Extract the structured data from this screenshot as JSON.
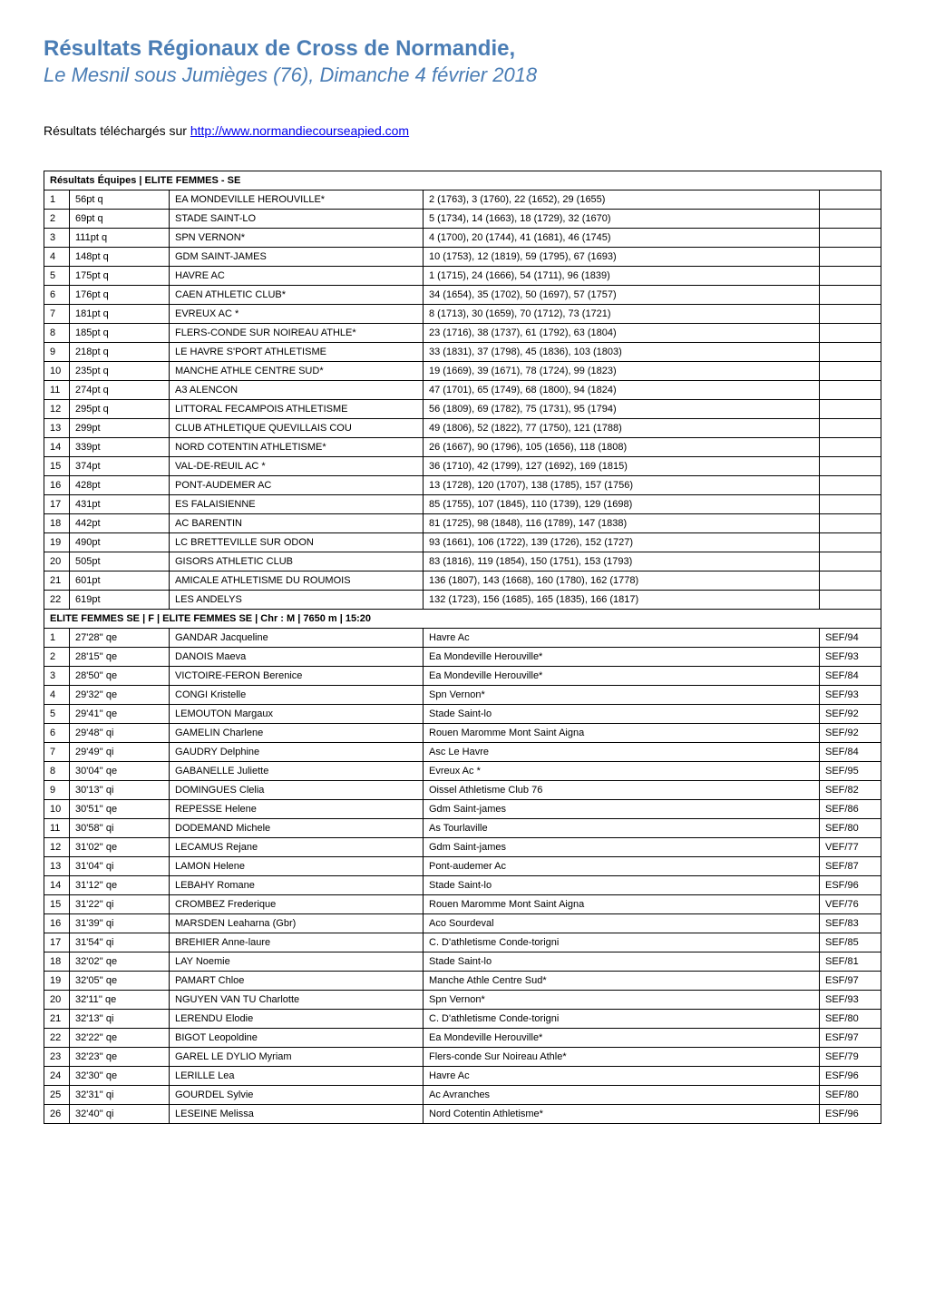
{
  "colors": {
    "title": "#4a7db5",
    "link": "#0000ee",
    "text": "#000000",
    "border": "#000000",
    "background": "#ffffff"
  },
  "header": {
    "title": "Résultats Régionaux de Cross de Normandie,",
    "subtitle": "Le Mesnil sous Jumièges (76), Dimanche 4 février 2018",
    "download_prefix": "Résultats téléchargés sur ",
    "download_link_text": "http://www.normandiecourseapied.com"
  },
  "team_section": {
    "heading": "Résultats Équipes | ELITE FEMMES - SE",
    "rows": [
      {
        "rank": "1",
        "points": "56pt q",
        "club": "EA MONDEVILLE HEROUVILLE*",
        "detail": "2 (1763), 3 (1760), 22 (1652), 29 (1655)"
      },
      {
        "rank": "2",
        "points": "69pt q",
        "club": "STADE SAINT-LO",
        "detail": "5 (1734), 14 (1663), 18 (1729), 32 (1670)"
      },
      {
        "rank": "3",
        "points": "111pt q",
        "club": "SPN VERNON*",
        "detail": "4 (1700), 20 (1744), 41 (1681), 46 (1745)"
      },
      {
        "rank": "4",
        "points": "148pt q",
        "club": "GDM SAINT-JAMES",
        "detail": "10 (1753), 12 (1819), 59 (1795), 67 (1693)"
      },
      {
        "rank": "5",
        "points": "175pt q",
        "club": "HAVRE AC",
        "detail": "1 (1715), 24 (1666), 54 (1711), 96 (1839)"
      },
      {
        "rank": "6",
        "points": "176pt q",
        "club": "CAEN ATHLETIC CLUB*",
        "detail": "34 (1654), 35 (1702), 50 (1697), 57 (1757)"
      },
      {
        "rank": "7",
        "points": "181pt q",
        "club": "EVREUX AC *",
        "detail": "8 (1713), 30 (1659), 70 (1712), 73 (1721)"
      },
      {
        "rank": "8",
        "points": "185pt q",
        "club": "FLERS-CONDE SUR NOIREAU ATHLE*",
        "detail": "23 (1716), 38 (1737), 61 (1792), 63 (1804)"
      },
      {
        "rank": "9",
        "points": "218pt q",
        "club": "LE HAVRE S'PORT ATHLETISME",
        "detail": "33 (1831), 37 (1798), 45 (1836), 103 (1803)"
      },
      {
        "rank": "10",
        "points": "235pt q",
        "club": "MANCHE ATHLE CENTRE SUD*",
        "detail": "19 (1669), 39 (1671), 78 (1724), 99 (1823)"
      },
      {
        "rank": "11",
        "points": "274pt q",
        "club": "A3 ALENCON",
        "detail": "47 (1701), 65 (1749), 68 (1800), 94 (1824)"
      },
      {
        "rank": "12",
        "points": "295pt q",
        "club": "LITTORAL FECAMPOIS ATHLETISME",
        "detail": "56 (1809), 69 (1782), 75 (1731), 95 (1794)"
      },
      {
        "rank": "13",
        "points": "299pt",
        "club": "CLUB ATHLETIQUE QUEVILLAIS COU",
        "detail": "49 (1806), 52 (1822), 77 (1750), 121 (1788)"
      },
      {
        "rank": "14",
        "points": "339pt",
        "club": "NORD COTENTIN ATHLETISME*",
        "detail": "26 (1667), 90 (1796), 105 (1656), 118 (1808)"
      },
      {
        "rank": "15",
        "points": "374pt",
        "club": "VAL-DE-REUIL AC *",
        "detail": "36 (1710), 42 (1799), 127 (1692), 169 (1815)"
      },
      {
        "rank": "16",
        "points": "428pt",
        "club": "PONT-AUDEMER AC",
        "detail": "13 (1728), 120 (1707), 138 (1785), 157 (1756)"
      },
      {
        "rank": "17",
        "points": "431pt",
        "club": "ES FALAISIENNE",
        "detail": "85 (1755), 107 (1845), 110 (1739), 129 (1698)"
      },
      {
        "rank": "18",
        "points": "442pt",
        "club": "AC BARENTIN",
        "detail": "81 (1725), 98 (1848), 116 (1789), 147 (1838)"
      },
      {
        "rank": "19",
        "points": "490pt",
        "club": "LC BRETTEVILLE SUR ODON",
        "detail": "93 (1661), 106 (1722), 139 (1726), 152 (1727)"
      },
      {
        "rank": "20",
        "points": "505pt",
        "club": "GISORS ATHLETIC CLUB",
        "detail": "83 (1816), 119 (1854), 150 (1751), 153 (1793)"
      },
      {
        "rank": "21",
        "points": "601pt",
        "club": "AMICALE ATHLETISME DU ROUMOIS",
        "detail": "136 (1807), 143 (1668), 160 (1780), 162 (1778)"
      },
      {
        "rank": "22",
        "points": "619pt",
        "club": "LES ANDELYS",
        "detail": "132 (1723), 156 (1685), 165 (1835), 166 (1817)"
      }
    ]
  },
  "indiv_section": {
    "heading": "ELITE FEMMES SE | F | ELITE FEMMES SE | Chr : M | 7650 m | 15:20",
    "rows": [
      {
        "rank": "1",
        "time": "27'28'' qe",
        "name": "GANDAR Jacqueline",
        "club": "Havre Ac",
        "cat": "SEF/94"
      },
      {
        "rank": "2",
        "time": "28'15'' qe",
        "name": "DANOIS Maeva",
        "club": "Ea Mondeville Herouville*",
        "cat": "SEF/93"
      },
      {
        "rank": "3",
        "time": "28'50'' qe",
        "name": "VICTOIRE-FERON Berenice",
        "club": "Ea Mondeville Herouville*",
        "cat": "SEF/84"
      },
      {
        "rank": "4",
        "time": "29'32'' qe",
        "name": "CONGI Kristelle",
        "club": "Spn Vernon*",
        "cat": "SEF/93"
      },
      {
        "rank": "5",
        "time": "29'41'' qe",
        "name": "LEMOUTON Margaux",
        "club": "Stade Saint-lo",
        "cat": "SEF/92"
      },
      {
        "rank": "6",
        "time": "29'48'' qi",
        "name": "GAMELIN Charlene",
        "club": "Rouen Maromme Mont Saint Aigna",
        "cat": "SEF/92"
      },
      {
        "rank": "7",
        "time": "29'49'' qi",
        "name": "GAUDRY Delphine",
        "club": "Asc Le Havre",
        "cat": "SEF/84"
      },
      {
        "rank": "8",
        "time": "30'04'' qe",
        "name": "GABANELLE Juliette",
        "club": "Evreux Ac *",
        "cat": "SEF/95"
      },
      {
        "rank": "9",
        "time": "30'13'' qi",
        "name": "DOMINGUES Clelia",
        "club": "Oissel Athletisme Club 76",
        "cat": "SEF/82"
      },
      {
        "rank": "10",
        "time": "30'51'' qe",
        "name": "REPESSE Helene",
        "club": "Gdm Saint-james",
        "cat": "SEF/86"
      },
      {
        "rank": "11",
        "time": "30'58'' qi",
        "name": "DODEMAND Michele",
        "club": "As Tourlaville",
        "cat": "SEF/80"
      },
      {
        "rank": "12",
        "time": "31'02'' qe",
        "name": "LECAMUS Rejane",
        "club": "Gdm Saint-james",
        "cat": "VEF/77"
      },
      {
        "rank": "13",
        "time": "31'04'' qi",
        "name": "LAMON Helene",
        "club": "Pont-audemer Ac",
        "cat": "SEF/87"
      },
      {
        "rank": "14",
        "time": "31'12'' qe",
        "name": "LEBAHY Romane",
        "club": "Stade Saint-lo",
        "cat": "ESF/96"
      },
      {
        "rank": "15",
        "time": "31'22'' qi",
        "name": "CROMBEZ Frederique",
        "club": "Rouen Maromme Mont Saint Aigna",
        "cat": "VEF/76"
      },
      {
        "rank": "16",
        "time": "31'39'' qi",
        "name": "MARSDEN Leaharna (Gbr)",
        "club": "Aco Sourdeval",
        "cat": "SEF/83"
      },
      {
        "rank": "17",
        "time": "31'54'' qi",
        "name": "BREHIER Anne-laure",
        "club": "C. D'athletisme Conde-torigni",
        "cat": "SEF/85"
      },
      {
        "rank": "18",
        "time": "32'02'' qe",
        "name": "LAY Noemie",
        "club": "Stade Saint-lo",
        "cat": "SEF/81"
      },
      {
        "rank": "19",
        "time": "32'05'' qe",
        "name": "PAMART Chloe",
        "club": "Manche Athle Centre Sud*",
        "cat": "ESF/97"
      },
      {
        "rank": "20",
        "time": "32'11'' qe",
        "name": "NGUYEN VAN TU Charlotte",
        "club": "Spn Vernon*",
        "cat": "SEF/93"
      },
      {
        "rank": "21",
        "time": "32'13'' qi",
        "name": "LERENDU Elodie",
        "club": "C. D'athletisme Conde-torigni",
        "cat": "SEF/80"
      },
      {
        "rank": "22",
        "time": "32'22'' qe",
        "name": "BIGOT Leopoldine",
        "club": "Ea Mondeville Herouville*",
        "cat": "ESF/97"
      },
      {
        "rank": "23",
        "time": "32'23'' qe",
        "name": "GAREL LE DYLIO Myriam",
        "club": "Flers-conde Sur Noireau Athle*",
        "cat": "SEF/79"
      },
      {
        "rank": "24",
        "time": "32'30'' qe",
        "name": "LERILLE Lea",
        "club": "Havre Ac",
        "cat": "ESF/96"
      },
      {
        "rank": "25",
        "time": "32'31'' qi",
        "name": "GOURDEL Sylvie",
        "club": "Ac Avranches",
        "cat": "SEF/80"
      },
      {
        "rank": "26",
        "time": "32'40'' qi",
        "name": "LESEINE Melissa",
        "club": "Nord Cotentin Athletisme*",
        "cat": "ESF/96"
      }
    ]
  }
}
